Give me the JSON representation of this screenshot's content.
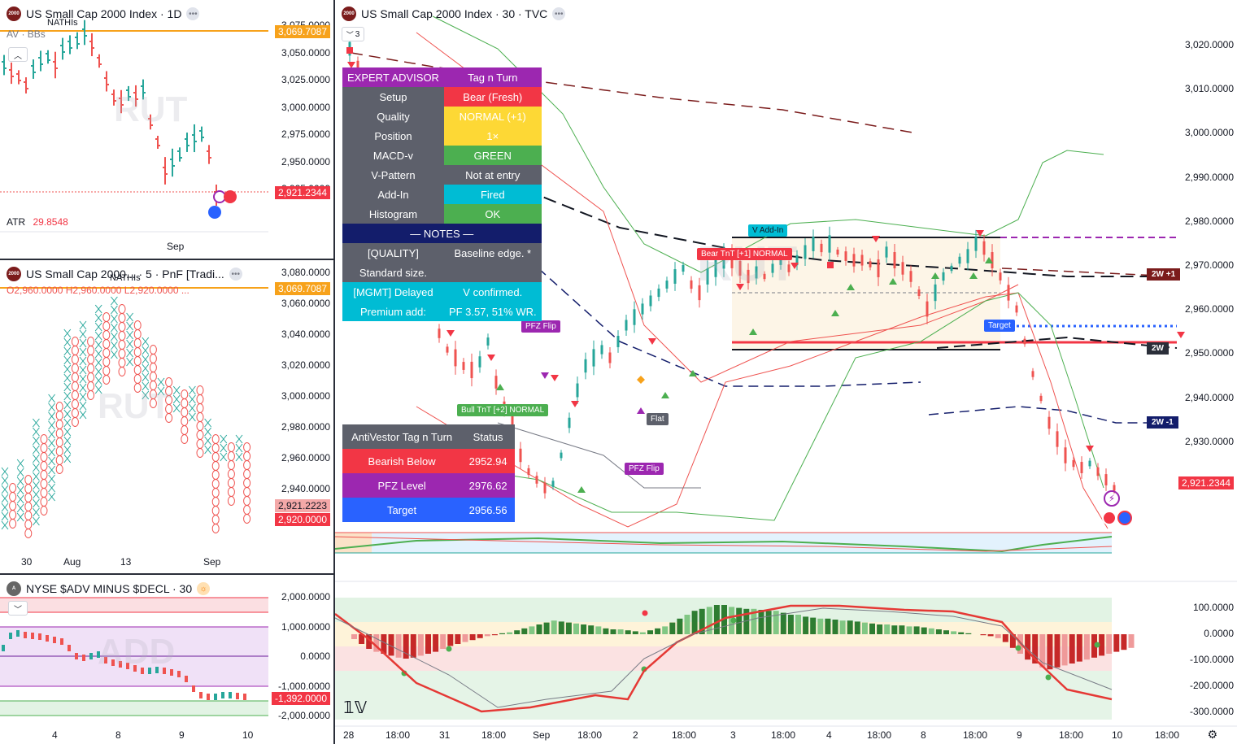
{
  "colors": {
    "up": "#26a69a",
    "down": "#ef5350",
    "orange": "#f7a21b",
    "purple": "#9c27b0",
    "navy": "#131d6b",
    "cyan": "#00bcd4",
    "green": "#4caf50",
    "yellow": "#fdd835",
    "red": "#f23645",
    "gray": "#5d606b",
    "blue": "#2962ff"
  },
  "pane_daily": {
    "title": "US Small Cap 2000 Index · 1D",
    "indicator": "AV · BBs",
    "label_nathis": "NATHIs",
    "axis": [
      "3,075.0000",
      "3,050.0000",
      "3,025.0000",
      "3,000.0000",
      "2,975.0000",
      "2,950.0000",
      "2,925.0000"
    ],
    "tag_high": "3,069.7087",
    "tag_price": "2,921.2344",
    "atr_label": "ATR",
    "atr_value": "29.8548",
    "time_label": "Sep",
    "watermark": "RUT"
  },
  "pane_pnf": {
    "title": "US Small Cap 2000... · 5 · PnF [Tradi...",
    "ohlc": "O2,960.0000 H2,960.0000 L2,920.0000 ...",
    "label_nathis": "NATHIs",
    "axis": [
      "3,080.0000",
      "3,060.0000",
      "3,040.0000",
      "3,020.0000",
      "3,000.0000",
      "2,980.0000",
      "2,960.0000",
      "2,940.0000"
    ],
    "tag_high": "3,069.7087",
    "tag_mid": "2,921.2223",
    "tag_price": "2,920.0000",
    "times": [
      "30",
      "Aug",
      "13",
      "Sep"
    ],
    "watermark": "RUT"
  },
  "pane_add": {
    "title": "NYSE $ADV MINUS $DECL · 30",
    "axis": [
      "2,000.0000",
      "1,000.0000",
      "0.0000",
      "-1,000.0000",
      "-2,000.0000"
    ],
    "tag_price": "-1,392.0000",
    "times": [
      "4",
      "8",
      "9",
      "10"
    ],
    "watermark": "ADD"
  },
  "main": {
    "title": "US Small Cap 2000 Index · 30 · TVC",
    "collapse_count": "3",
    "axis": [
      "3,020.0000",
      "3,010.0000",
      "3,000.0000",
      "2,990.0000",
      "2,980.0000",
      "2,970.0000",
      "2,960.0000",
      "2,950.0000",
      "2,940.0000",
      "2,930.0000"
    ],
    "tag_price": "2,921.2344",
    "tag_2w_up": "2W +1",
    "tag_2w": "2W",
    "tag_2w_dn": "2W -1",
    "osc_axis": [
      "100.0000",
      "0.0000",
      "-100.0000",
      "-200.0000",
      "-300.0000"
    ],
    "times": [
      "28",
      "18:00",
      "31",
      "18:00",
      "Sep",
      "18:00",
      "2",
      "18:00",
      "3",
      "18:00",
      "4",
      "18:00",
      "8",
      "18:00",
      "9",
      "18:00",
      "10",
      "18:00"
    ],
    "watermark": "RUT",
    "labels": {
      "v_addin": "V Add-In",
      "bear_tnt": "Bear TnT [+1] NORMAL",
      "pfz_flip_1": "PFZ Flip",
      "pfz_flip_2": "PFZ Flip",
      "bull_tnt": "Bull TnT [+2] NORMAL",
      "flat": "Flat",
      "target": "Target"
    }
  },
  "expert_advisor": {
    "header_left": "EXPERT ADVISOR",
    "header_right": "Tag n Turn",
    "rows": [
      {
        "label": "Setup",
        "value": "Bear (Fresh)",
        "color": "#f23645",
        "text": "#ffffff"
      },
      {
        "label": "Quality",
        "value": "NORMAL (+1)",
        "color": "#fdd835",
        "text": "#ffffff"
      },
      {
        "label": "Position",
        "value": "1×",
        "color": "#fdd835",
        "text": "#ffffff"
      },
      {
        "label": "MACD-v",
        "value": "GREEN",
        "color": "#4caf50",
        "text": "#ffffff"
      },
      {
        "label": "V-Pattern",
        "value": "Not at entry",
        "color": "#5d606b",
        "text": "#ffffff"
      },
      {
        "label": "Add-In",
        "value": "Fired",
        "color": "#00bcd4",
        "text": "#ffffff"
      },
      {
        "label": "Histogram",
        "value": "OK",
        "color": "#4caf50",
        "text": "#ffffff"
      }
    ],
    "notes_header": "— NOTES —",
    "notes": [
      {
        "label": "[QUALITY]",
        "value": "Baseline edge. *"
      },
      {
        "label": "Standard size.",
        "value": ""
      }
    ],
    "mgmt": [
      {
        "label": "[MGMT] Delayed",
        "value": "V confirmed."
      },
      {
        "label": "Premium add:",
        "value": "PF 3.57, 51% WR."
      }
    ]
  },
  "antivestor": {
    "header_left": "AntiVestor Tag n Turn",
    "header_right": "Status",
    "rows": [
      {
        "label": "Bearish Below",
        "value": "2952.94",
        "color": "#f23645"
      },
      {
        "label": "PFZ Level",
        "value": "2976.62",
        "color": "#9c27b0"
      },
      {
        "label": "Target",
        "value": "2956.56",
        "color": "#2962ff"
      }
    ]
  }
}
